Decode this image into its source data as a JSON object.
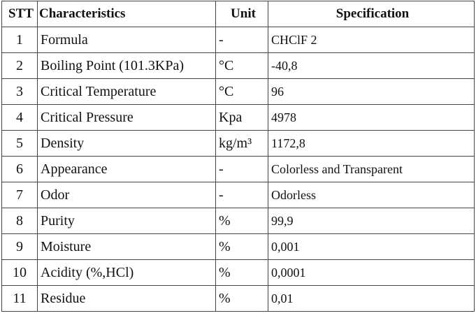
{
  "table": {
    "header": [
      "STT",
      "Characteristics",
      "Unit",
      "Specification"
    ],
    "rows": [
      [
        "1",
        "Formula",
        "-",
        "CHClF 2"
      ],
      [
        "2",
        "Boiling Point (101.3KPa)",
        "°C",
        "-40,8"
      ],
      [
        "3",
        "Critical Temperature",
        "°C",
        "96"
      ],
      [
        "4",
        "Critical Pressure",
        "Kpa",
        "4978"
      ],
      [
        "5",
        "Density",
        "kg/m³",
        "1172,8"
      ],
      [
        "6",
        "Appearance",
        "-",
        "Colorless and Transparent"
      ],
      [
        "7",
        "Odor",
        "-",
        "Odorless"
      ],
      [
        "8",
        "Purity",
        "%",
        "99,9"
      ],
      [
        "9",
        "Moisture",
        "%",
        "0,001"
      ],
      [
        "10",
        "Acidity (%,HCl)",
        "%",
        "0,0001"
      ],
      [
        "11",
        "Residue",
        "%",
        "0,01"
      ]
    ]
  }
}
